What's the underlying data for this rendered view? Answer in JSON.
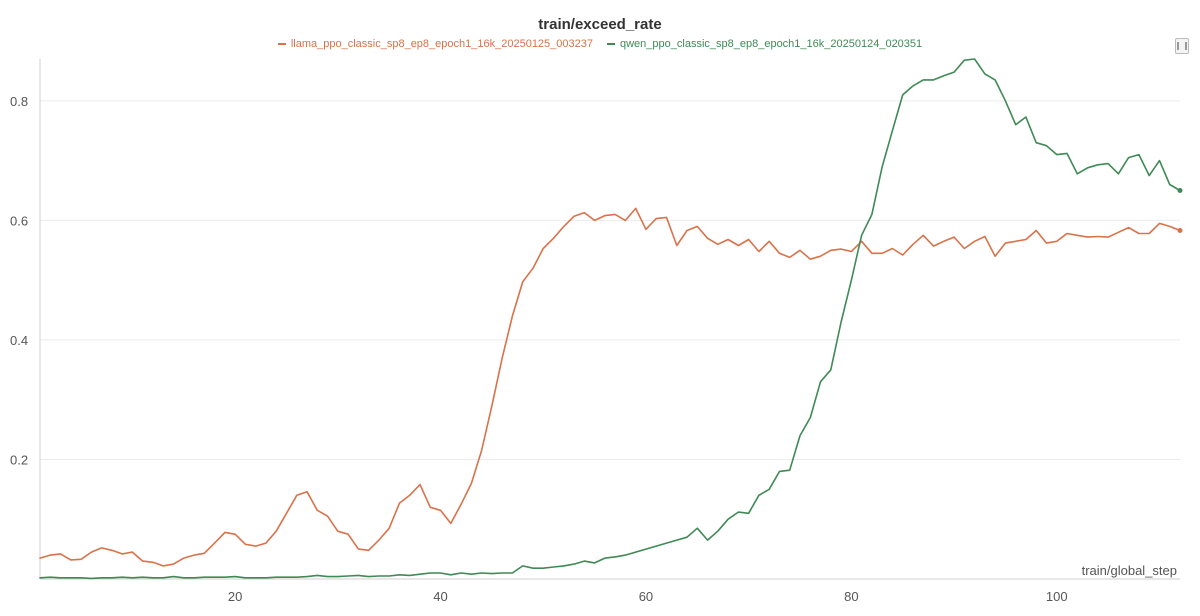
{
  "chart_data": {
    "type": "line",
    "title": "train/exceed_rate",
    "xlabel": "train/global_step",
    "ylabel": "",
    "xlim": [
      1,
      112
    ],
    "ylim": [
      0,
      0.87
    ],
    "xticks": [
      20,
      40,
      60,
      80,
      100
    ],
    "yticks": [
      0.2,
      0.4,
      0.6,
      0.8
    ],
    "grid": true,
    "legend_position": "top-center",
    "series": [
      {
        "name": "llama_ppo_classic_sp8_ep8_epoch1_16k_20250125_003237",
        "color": "#d9724a",
        "x": [
          1,
          2,
          3,
          4,
          5,
          6,
          7,
          8,
          9,
          10,
          11,
          12,
          13,
          14,
          15,
          16,
          17,
          18,
          19,
          20,
          21,
          22,
          23,
          24,
          25,
          26,
          27,
          28,
          29,
          30,
          31,
          32,
          33,
          34,
          35,
          36,
          37,
          38,
          39,
          40,
          41,
          42,
          43,
          44,
          45,
          46,
          47,
          48,
          49,
          50,
          51,
          52,
          53,
          54,
          55,
          56,
          57,
          58,
          59,
          60,
          61,
          62,
          63,
          64,
          65,
          66,
          67,
          68,
          69,
          70,
          71,
          72,
          73,
          74,
          75,
          76,
          77,
          78,
          79,
          80,
          81,
          82,
          83,
          84,
          85,
          86,
          87,
          88,
          89,
          90,
          91,
          92,
          93,
          94,
          95,
          96,
          97,
          98,
          99,
          100,
          101,
          102,
          103,
          104,
          105,
          106,
          107,
          108,
          109,
          110,
          111,
          112
        ],
        "values": [
          0.035,
          0.04,
          0.042,
          0.032,
          0.033,
          0.045,
          0.052,
          0.048,
          0.042,
          0.045,
          0.03,
          0.028,
          0.022,
          0.025,
          0.035,
          0.04,
          0.043,
          0.06,
          0.078,
          0.075,
          0.058,
          0.055,
          0.06,
          0.08,
          0.11,
          0.14,
          0.146,
          0.115,
          0.105,
          0.08,
          0.075,
          0.05,
          0.048,
          0.065,
          0.085,
          0.127,
          0.14,
          0.158,
          0.12,
          0.115,
          0.093,
          0.125,
          0.16,
          0.215,
          0.29,
          0.37,
          0.44,
          0.497,
          0.52,
          0.553,
          0.57,
          0.59,
          0.607,
          0.613,
          0.6,
          0.608,
          0.61,
          0.6,
          0.62,
          0.585,
          0.603,
          0.605,
          0.558,
          0.583,
          0.59,
          0.57,
          0.56,
          0.568,
          0.558,
          0.568,
          0.548,
          0.565,
          0.545,
          0.538,
          0.55,
          0.535,
          0.54,
          0.55,
          0.552,
          0.548,
          0.565,
          0.545,
          0.545,
          0.553,
          0.542,
          0.56,
          0.575,
          0.557,
          0.565,
          0.572,
          0.553,
          0.565,
          0.573,
          0.54,
          0.562,
          0.565,
          0.568,
          0.583,
          0.562,
          0.565,
          0.578,
          0.575,
          0.572,
          0.573,
          0.572,
          0.58,
          0.588,
          0.578,
          0.578,
          0.595,
          0.59,
          0.583
        ]
      },
      {
        "name": "qwen_ppo_classic_sp8_ep8_epoch1_16k_20250124_020351",
        "color": "#3f8a55",
        "x": [
          1,
          2,
          3,
          4,
          5,
          6,
          7,
          8,
          9,
          10,
          11,
          12,
          13,
          14,
          15,
          16,
          17,
          18,
          19,
          20,
          21,
          22,
          23,
          24,
          25,
          26,
          27,
          28,
          29,
          30,
          31,
          32,
          33,
          34,
          35,
          36,
          37,
          38,
          39,
          40,
          41,
          42,
          43,
          44,
          45,
          46,
          47,
          48,
          49,
          50,
          51,
          52,
          53,
          54,
          55,
          56,
          57,
          58,
          59,
          60,
          61,
          62,
          63,
          64,
          65,
          66,
          67,
          68,
          69,
          70,
          71,
          72,
          73,
          74,
          75,
          76,
          77,
          78,
          79,
          80,
          81,
          82,
          83,
          84,
          85,
          86,
          87,
          88,
          89,
          90,
          91,
          92,
          93,
          94,
          95,
          96,
          97,
          98,
          99,
          100,
          101,
          102,
          103,
          104,
          105,
          106,
          107,
          108,
          109,
          110,
          111,
          112
        ],
        "values": [
          0.002,
          0.003,
          0.002,
          0.002,
          0.002,
          0.001,
          0.002,
          0.002,
          0.003,
          0.002,
          0.003,
          0.002,
          0.002,
          0.004,
          0.002,
          0.002,
          0.003,
          0.003,
          0.003,
          0.004,
          0.002,
          0.002,
          0.002,
          0.003,
          0.003,
          0.003,
          0.004,
          0.006,
          0.004,
          0.004,
          0.005,
          0.006,
          0.004,
          0.005,
          0.005,
          0.007,
          0.006,
          0.008,
          0.01,
          0.01,
          0.007,
          0.01,
          0.008,
          0.01,
          0.009,
          0.01,
          0.01,
          0.022,
          0.018,
          0.018,
          0.02,
          0.022,
          0.025,
          0.03,
          0.027,
          0.035,
          0.037,
          0.04,
          0.045,
          0.05,
          0.055,
          0.06,
          0.065,
          0.07,
          0.085,
          0.065,
          0.08,
          0.1,
          0.112,
          0.11,
          0.14,
          0.15,
          0.18,
          0.182,
          0.24,
          0.27,
          0.33,
          0.35,
          0.43,
          0.5,
          0.575,
          0.61,
          0.69,
          0.75,
          0.81,
          0.825,
          0.835,
          0.835,
          0.842,
          0.848,
          0.868,
          0.87,
          0.845,
          0.835,
          0.8,
          0.76,
          0.773,
          0.73,
          0.725,
          0.71,
          0.712,
          0.678,
          0.688,
          0.693,
          0.695,
          0.678,
          0.705,
          0.71,
          0.675,
          0.7,
          0.66,
          0.65
        ]
      }
    ]
  }
}
